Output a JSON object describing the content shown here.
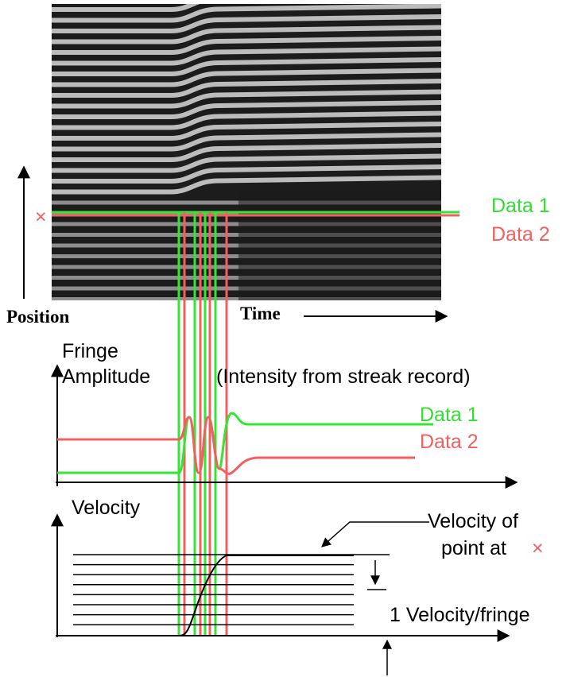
{
  "streak": {
    "data1": "Data 1",
    "data2": "Data 2",
    "marker": "×",
    "position": "Position",
    "time": "Time"
  },
  "amplitude": {
    "label_line1": "Fringe",
    "label_line2": "Amplitude",
    "note": "(Intensity from streak record)",
    "data1": "Data 1",
    "data2": "Data 2"
  },
  "velocity": {
    "label": "Velocity",
    "annotation_line1": "Velocity of",
    "annotation_line2": "point at",
    "marker": "×",
    "fringe_note": "1 Velocity/fringe"
  }
}
